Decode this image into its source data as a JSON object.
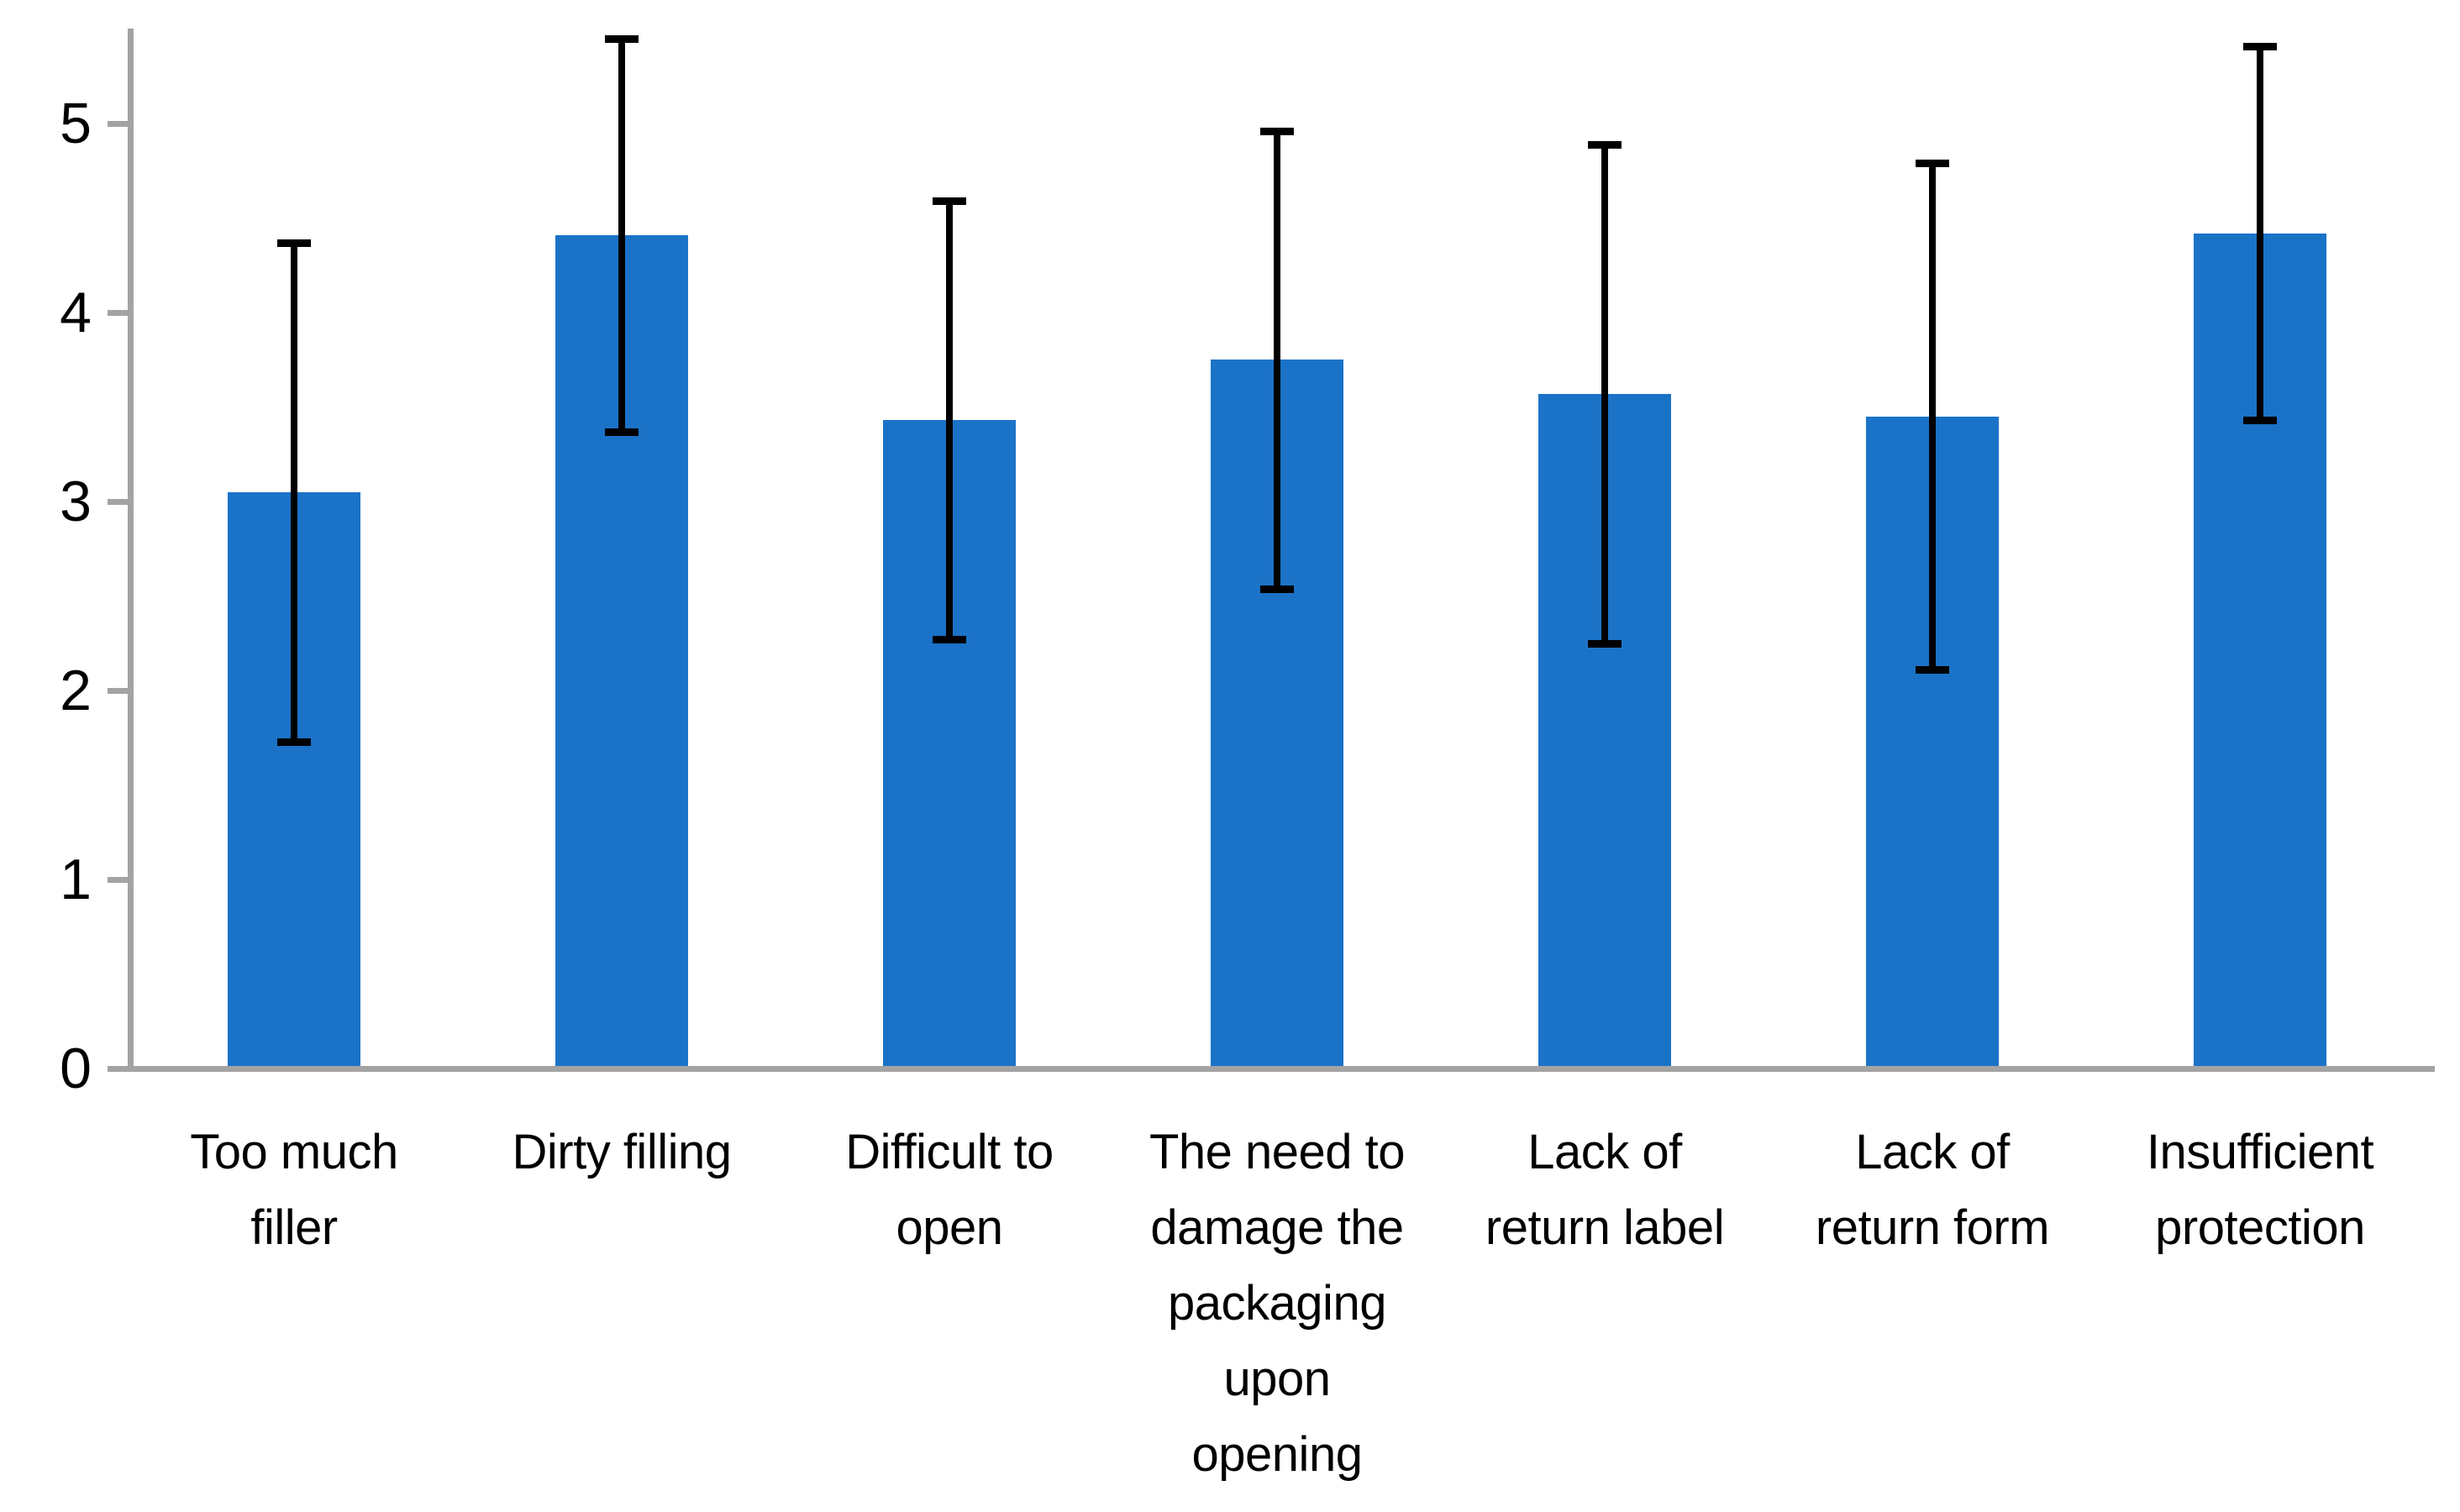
{
  "figure": {
    "background": "#FFFFFF",
    "title": ""
  },
  "chart_data": {
    "type": "bar",
    "title": "",
    "xlabel": "",
    "ylabel": "",
    "ylim": [
      0,
      5.5
    ],
    "grid": false,
    "legend": null,
    "bar_color": "#1B73C8",
    "axis_color": "#A3A3A3",
    "error_bar_color": "#000000",
    "text_color": "#000000",
    "yticks": [
      0,
      1,
      2,
      3,
      4,
      5
    ],
    "ytick_labels": [
      "0",
      "1",
      "2",
      "3",
      "4",
      "5"
    ],
    "categories": [
      "Too much filler",
      "Dirty filling",
      "Difficult to open",
      "The need to damage the packaging upon opening",
      "Lack of return label",
      "Lack of return form",
      "Insufficient protection"
    ],
    "category_label_lines": [
      [
        "Too much",
        "filler"
      ],
      [
        "Dirty filling"
      ],
      [
        "Difficult to",
        "open"
      ],
      [
        "The need to",
        "damage the",
        "packaging",
        "upon",
        "opening"
      ],
      [
        "Lack of",
        "return label"
      ],
      [
        "Lack of",
        "return form"
      ],
      [
        "Insufficient",
        "protection"
      ]
    ],
    "values": [
      3.05,
      4.41,
      3.43,
      3.75,
      3.57,
      3.45,
      4.42
    ],
    "error_bars": {
      "symmetric": true,
      "upper": [
        4.37,
        5.45,
        4.59,
        4.96,
        4.89,
        4.79,
        5.41
      ],
      "lower": [
        1.73,
        3.37,
        2.27,
        2.54,
        2.25,
        2.11,
        3.43
      ]
    }
  }
}
